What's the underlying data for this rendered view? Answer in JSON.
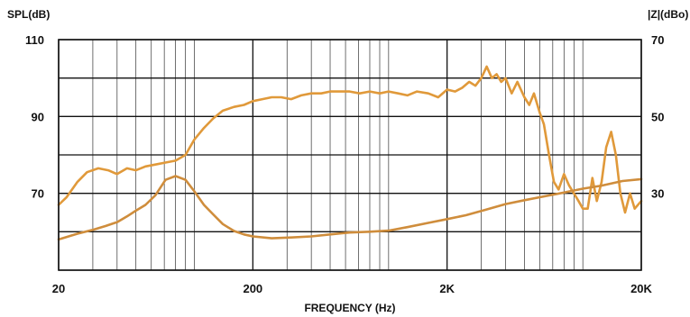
{
  "chart_data": {
    "type": "line",
    "title": "",
    "xlabel": "FREQUENCY (Hz)",
    "ylabel_left": "SPL(dB)",
    "ylabel_right": "|Z|(dBo)",
    "x_scale": "log",
    "xlim": [
      20,
      20000
    ],
    "ylim_left": [
      50,
      110
    ],
    "ylim_right": [
      10,
      70
    ],
    "grid": true,
    "x_ticks": [
      {
        "value": 20,
        "label": "20"
      },
      {
        "value": 200,
        "label": "200"
      },
      {
        "value": 2000,
        "label": "2K"
      },
      {
        "value": 20000,
        "label": "20K"
      }
    ],
    "y_ticks_left": [
      {
        "value": 110,
        "label": "110"
      },
      {
        "value": 90,
        "label": "90"
      },
      {
        "value": 70,
        "label": "70"
      }
    ],
    "y_ticks_right": [
      {
        "value": 70,
        "label": "70"
      },
      {
        "value": 50,
        "label": "50"
      },
      {
        "value": 30,
        "label": "30"
      }
    ],
    "colors": {
      "spl": "#e0993a",
      "impedance": "#cf8d3c",
      "grid": "#111111"
    },
    "series": [
      {
        "key": "spl",
        "axis": "left",
        "x": [
          20,
          22,
          25,
          28,
          32,
          36,
          40,
          45,
          50,
          56,
          63,
          71,
          80,
          90,
          100,
          112,
          125,
          140,
          160,
          180,
          200,
          224,
          250,
          280,
          315,
          355,
          400,
          450,
          500,
          560,
          630,
          710,
          800,
          900,
          1000,
          1120,
          1250,
          1400,
          1600,
          1800,
          2000,
          2200,
          2400,
          2600,
          2800,
          3000,
          3200,
          3400,
          3600,
          3800,
          4000,
          4300,
          4600,
          5000,
          5300,
          5600,
          6000,
          6300,
          6700,
          7100,
          7500,
          8000,
          8500,
          9000,
          9500,
          10000,
          10600,
          11200,
          11800,
          12500,
          13200,
          14000,
          14800,
          15600,
          16500,
          17500,
          18500,
          20000
        ],
        "values": [
          67,
          69,
          73,
          75.5,
          76.5,
          76,
          75,
          76.5,
          76,
          77,
          77.5,
          78,
          78.5,
          80,
          84,
          87,
          89.5,
          91.5,
          92.5,
          93,
          94,
          94.5,
          95,
          95,
          94.5,
          95.5,
          96,
          96,
          96.5,
          96.5,
          96.5,
          96,
          96.5,
          96,
          96.5,
          96,
          95.5,
          96.5,
          96,
          95,
          97,
          96.5,
          97.5,
          99,
          98,
          100,
          103,
          100,
          101,
          99,
          100,
          96,
          99,
          95,
          93,
          96,
          91,
          88,
          80,
          73,
          71,
          75,
          72,
          70,
          68,
          66,
          66,
          74,
          68,
          73,
          82,
          86,
          80,
          70,
          65,
          70,
          66,
          68
        ]
      },
      {
        "key": "impedance",
        "axis": "right",
        "x": [
          20,
          25,
          30,
          35,
          40,
          45,
          50,
          56,
          63,
          71,
          80,
          90,
          100,
          112,
          125,
          140,
          160,
          180,
          200,
          250,
          315,
          400,
          500,
          630,
          800,
          1000,
          1250,
          1600,
          2000,
          2500,
          3150,
          4000,
          5000,
          6300,
          8000,
          10000,
          12500,
          16000,
          20000
        ],
        "values": [
          18,
          19.5,
          20.5,
          21.5,
          22.5,
          24,
          25.5,
          27,
          29.5,
          33.5,
          34.5,
          33.5,
          30.5,
          27,
          24.5,
          22,
          20.2,
          19.3,
          18.8,
          18.3,
          18.5,
          18.8,
          19.3,
          19.8,
          20,
          20.3,
          21.2,
          22.3,
          23.3,
          24.3,
          25.7,
          27.2,
          28.2,
          29.2,
          30.2,
          31.2,
          32,
          33.2,
          33.7
        ]
      }
    ]
  }
}
